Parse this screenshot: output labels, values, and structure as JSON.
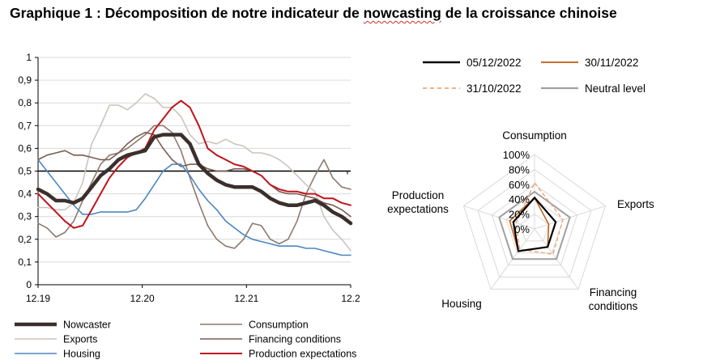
{
  "title": {
    "part1": "Graphique 1 : Décomposition de notre indicateur de ",
    "part2": "nowcasting",
    "part3": " de la croissance chinoise"
  },
  "chart_data": [
    {
      "type": "line",
      "title": "",
      "xlabel": "",
      "ylabel": "",
      "ylim": [
        0,
        1
      ],
      "yticks": [
        "0",
        "0,1",
        "0,2",
        "0,3",
        "0,4",
        "0,5",
        "0,6",
        "0,7",
        "0,8",
        "0,9",
        "1"
      ],
      "xticks": [
        "12.19",
        "12.20",
        "12.21",
        "12.2"
      ],
      "x_range": [
        0,
        36
      ],
      "xtick_positions": [
        0,
        12,
        24,
        36
      ],
      "reference_line": 0.5,
      "series": [
        {
          "name": "Nowcaster",
          "color": "#3b2f2d",
          "width": 4.5,
          "values": [
            0.42,
            0.4,
            0.37,
            0.37,
            0.36,
            0.38,
            0.43,
            0.48,
            0.51,
            0.55,
            0.57,
            0.58,
            0.59,
            0.65,
            0.66,
            0.66,
            0.66,
            0.62,
            0.53,
            0.49,
            0.46,
            0.44,
            0.43,
            0.43,
            0.43,
            0.41,
            0.38,
            0.36,
            0.35,
            0.35,
            0.36,
            0.37,
            0.35,
            0.32,
            0.3,
            0.27
          ]
        },
        {
          "name": "Consumption",
          "color": "#8c7a70",
          "width": 1.6,
          "values": [
            0.27,
            0.25,
            0.21,
            0.23,
            0.28,
            0.37,
            0.45,
            0.53,
            0.57,
            0.58,
            0.6,
            0.63,
            0.66,
            0.7,
            0.7,
            0.67,
            0.59,
            0.47,
            0.36,
            0.26,
            0.2,
            0.17,
            0.16,
            0.2,
            0.27,
            0.26,
            0.2,
            0.18,
            0.2,
            0.28,
            0.4,
            0.48,
            0.55,
            0.47,
            0.43,
            0.42
          ]
        },
        {
          "name": "Exports",
          "color": "#cbc4bf",
          "width": 1.6,
          "values": [
            0.34,
            0.34,
            0.33,
            0.33,
            0.36,
            0.45,
            0.62,
            0.7,
            0.79,
            0.79,
            0.77,
            0.8,
            0.84,
            0.82,
            0.78,
            0.78,
            0.74,
            0.66,
            0.62,
            0.63,
            0.62,
            0.64,
            0.62,
            0.61,
            0.58,
            0.58,
            0.57,
            0.55,
            0.52,
            0.48,
            0.44,
            0.41,
            0.3,
            0.24,
            0.2,
            0.15
          ]
        },
        {
          "name": "Financing conditions",
          "color": "#7a5c50",
          "width": 1.6,
          "values": [
            0.55,
            0.57,
            0.58,
            0.59,
            0.57,
            0.57,
            0.56,
            0.55,
            0.55,
            0.58,
            0.62,
            0.65,
            0.67,
            0.66,
            0.6,
            0.55,
            0.52,
            0.53,
            0.53,
            0.51,
            0.5,
            0.5,
            0.51,
            0.51,
            0.5,
            0.48,
            0.44,
            0.41,
            0.4,
            0.4,
            0.39,
            0.38,
            0.36,
            0.35,
            0.33,
            0.3
          ]
        },
        {
          "name": "Housing",
          "color": "#4b86c2",
          "width": 1.6,
          "values": [
            0.55,
            0.5,
            0.45,
            0.4,
            0.35,
            0.31,
            0.31,
            0.32,
            0.32,
            0.32,
            0.32,
            0.33,
            0.38,
            0.44,
            0.5,
            0.53,
            0.53,
            0.48,
            0.42,
            0.37,
            0.33,
            0.28,
            0.25,
            0.22,
            0.2,
            0.19,
            0.18,
            0.17,
            0.17,
            0.17,
            0.16,
            0.16,
            0.15,
            0.14,
            0.13,
            0.13
          ]
        },
        {
          "name": "Production expectations",
          "color": "#c0141b",
          "width": 2,
          "values": [
            0.4,
            0.36,
            0.32,
            0.28,
            0.25,
            0.26,
            0.33,
            0.4,
            0.47,
            0.52,
            0.56,
            0.58,
            0.6,
            0.68,
            0.73,
            0.78,
            0.81,
            0.78,
            0.7,
            0.6,
            0.57,
            0.55,
            0.53,
            0.52,
            0.5,
            0.48,
            0.44,
            0.42,
            0.41,
            0.41,
            0.4,
            0.4,
            0.38,
            0.38,
            0.36,
            0.35
          ]
        }
      ],
      "legend": [
        {
          "name": "Nowcaster",
          "color": "#3b2f2d",
          "width": 4.5
        },
        {
          "name": "Consumption",
          "color": "#8c7a70",
          "width": 1.6
        },
        {
          "name": "Exports",
          "color": "#cbc4bf",
          "width": 1.6
        },
        {
          "name": "Financing conditions",
          "color": "#7a5c50",
          "width": 1.6
        },
        {
          "name": "Housing",
          "color": "#4b86c2",
          "width": 1.6
        },
        {
          "name": "Production expectations",
          "color": "#c0141b",
          "width": 2
        }
      ]
    },
    {
      "type": "radar",
      "axes": [
        "Consumption",
        "Exports",
        "Financing conditions",
        "Housing",
        "Production expectations"
      ],
      "axis_labels": [
        [
          "Consumption"
        ],
        [
          "Exports"
        ],
        [
          "Financing",
          "conditions"
        ],
        [
          "Housing"
        ],
        [
          "Production",
          "expectations"
        ]
      ],
      "rlim": [
        0,
        1
      ],
      "ring_labels": [
        "0%",
        "20%",
        "40%",
        "60%",
        "80%",
        "100%"
      ],
      "series": [
        {
          "name": "05/12/2022",
          "color": "#000000",
          "dash": "",
          "width": 2.2,
          "values": [
            0.42,
            0.3,
            0.3,
            0.37,
            0.3
          ]
        },
        {
          "name": "30/11/2022",
          "color": "#c05a10",
          "dash": "",
          "width": 1.5,
          "values": [
            0.42,
            0.2,
            0.3,
            0.37,
            0.35
          ]
        },
        {
          "name": "31/10/2022",
          "color": "#f0a878",
          "dash": "5,3",
          "width": 1.5,
          "values": [
            0.62,
            0.4,
            0.42,
            0.34,
            0.26
          ]
        },
        {
          "name": "Neutral level",
          "color": "#a0a0a0",
          "dash": "",
          "width": 2,
          "values": [
            0.5,
            0.5,
            0.5,
            0.5,
            0.5
          ]
        }
      ],
      "legend": [
        {
          "name": "05/12/2022",
          "color": "#000000",
          "dash": "",
          "width": 2.6
        },
        {
          "name": "30/11/2022",
          "color": "#c05a10",
          "dash": "",
          "width": 1.8
        },
        {
          "name": "31/10/2022",
          "color": "#f0a878",
          "dash": "5,4",
          "width": 1.8
        },
        {
          "name": "Neutral level",
          "color": "#a0a0a0",
          "dash": "",
          "width": 2.2
        }
      ]
    }
  ]
}
